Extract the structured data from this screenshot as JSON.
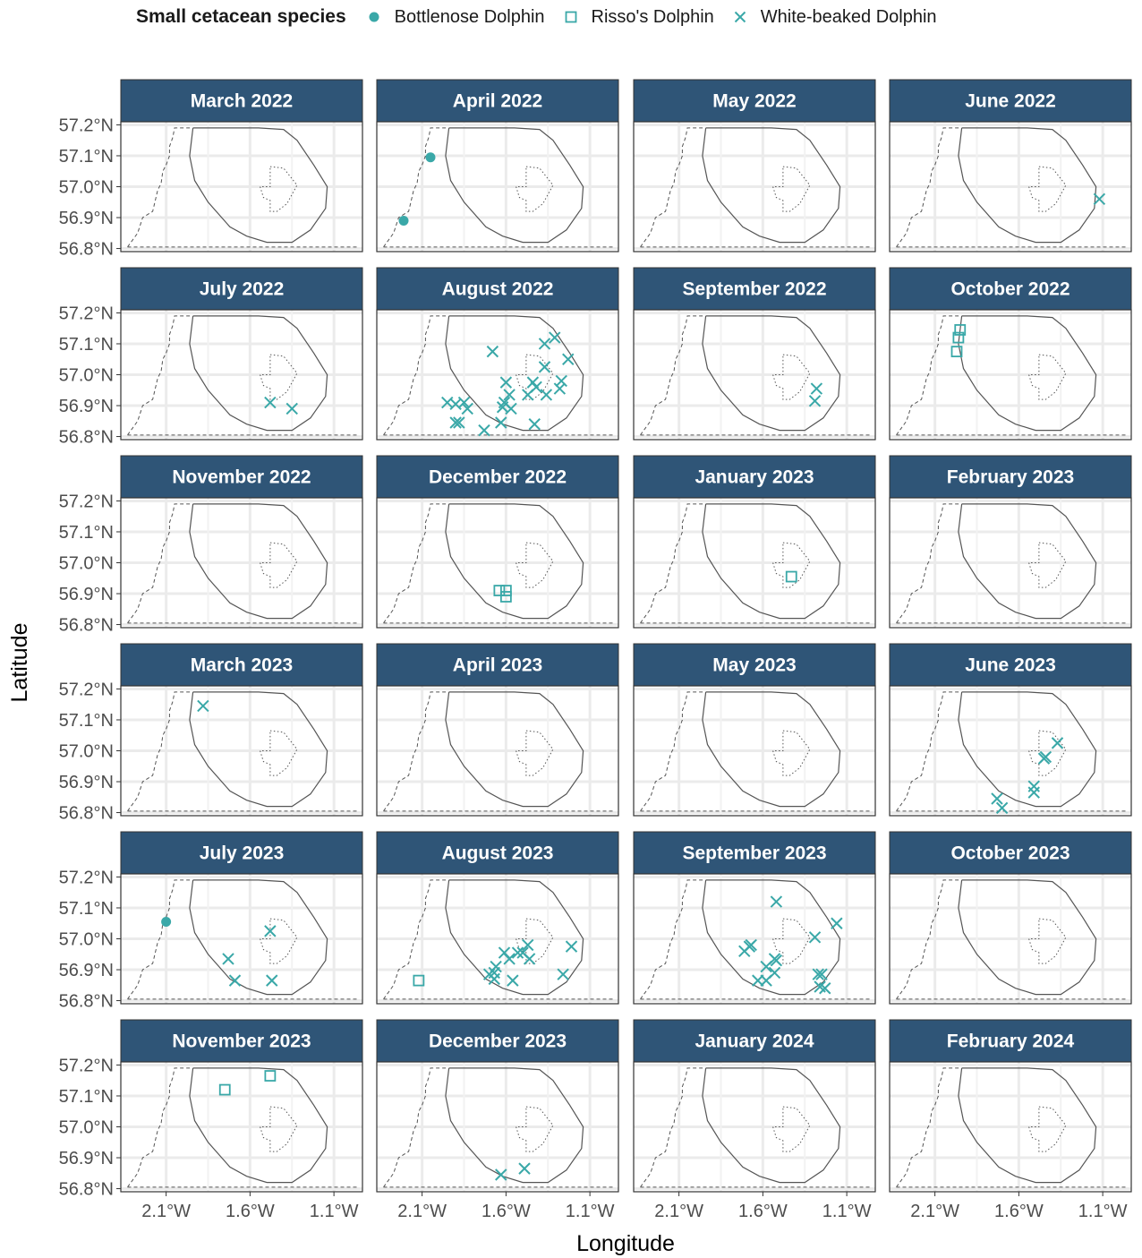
{
  "legend": {
    "title": "Small cetacean species",
    "items": [
      {
        "label": "Bottlenose Dolphin",
        "shape": "circle"
      },
      {
        "label": "Risso's Dolphin",
        "shape": "square"
      },
      {
        "label": "White-beaked Dolphin",
        "shape": "cross"
      }
    ]
  },
  "colors": {
    "accent": "#3aa8a8",
    "strip": "#2f5577",
    "strip_text": "#ffffff",
    "grid": "#ebebeb",
    "outline": "#555555",
    "panel_border": "#333333"
  },
  "chart_data": {
    "type": "scatter",
    "xlabel": "Longitude",
    "ylabel": "Latitude",
    "xlim": [
      -2.37,
      -0.93
    ],
    "ylim": [
      56.79,
      57.21
    ],
    "x_ticks": [
      -2.1,
      -1.6,
      -1.1
    ],
    "x_tick_labels": [
      "2.1°W",
      "1.6°W",
      "1.1°W"
    ],
    "y_ticks": [
      56.8,
      56.9,
      57.0,
      57.1,
      57.2
    ],
    "y_tick_labels": [
      "56.8°N",
      "56.9°N",
      "57.0°N",
      "57.1°N",
      "57.2°N"
    ],
    "grid": true,
    "legend_position": "top",
    "series_names": [
      "Bottlenose Dolphin",
      "Risso's Dolphin",
      "White-beaked Dolphin"
    ],
    "panels": [
      {
        "title": "March 2022",
        "points": []
      },
      {
        "title": "April 2022",
        "points": [
          {
            "s": 0,
            "x": -2.05,
            "y": 57.095
          },
          {
            "s": 0,
            "x": -2.21,
            "y": 56.89
          }
        ]
      },
      {
        "title": "May 2022",
        "points": []
      },
      {
        "title": "June 2022",
        "points": [
          {
            "s": 2,
            "x": -1.12,
            "y": 56.96
          }
        ]
      },
      {
        "title": "July 2022",
        "points": [
          {
            "s": 2,
            "x": -1.48,
            "y": 56.91
          },
          {
            "s": 2,
            "x": -1.35,
            "y": 56.89
          }
        ]
      },
      {
        "title": "August 2022",
        "points": [
          {
            "s": 2,
            "x": -1.68,
            "y": 57.075
          },
          {
            "s": 2,
            "x": -1.95,
            "y": 56.91
          },
          {
            "s": 2,
            "x": -1.9,
            "y": 56.905
          },
          {
            "s": 2,
            "x": -1.85,
            "y": 56.91
          },
          {
            "s": 2,
            "x": -1.83,
            "y": 56.89
          },
          {
            "s": 2,
            "x": -1.9,
            "y": 56.845
          },
          {
            "s": 2,
            "x": -1.88,
            "y": 56.845
          },
          {
            "s": 2,
            "x": -1.73,
            "y": 56.82
          },
          {
            "s": 2,
            "x": -1.63,
            "y": 56.845
          },
          {
            "s": 2,
            "x": -1.6,
            "y": 56.975
          },
          {
            "s": 2,
            "x": -1.58,
            "y": 56.935
          },
          {
            "s": 2,
            "x": -1.61,
            "y": 56.91
          },
          {
            "s": 2,
            "x": -1.62,
            "y": 56.895
          },
          {
            "s": 2,
            "x": -1.57,
            "y": 56.89
          },
          {
            "s": 2,
            "x": -1.47,
            "y": 56.935
          },
          {
            "s": 2,
            "x": -1.44,
            "y": 56.975
          },
          {
            "s": 2,
            "x": -1.42,
            "y": 56.96
          },
          {
            "s": 2,
            "x": -1.37,
            "y": 57.025
          },
          {
            "s": 2,
            "x": -1.37,
            "y": 57.1
          },
          {
            "s": 2,
            "x": -1.31,
            "y": 57.12
          },
          {
            "s": 2,
            "x": -1.23,
            "y": 57.05
          },
          {
            "s": 2,
            "x": -1.27,
            "y": 56.98
          },
          {
            "s": 2,
            "x": -1.28,
            "y": 56.955
          },
          {
            "s": 2,
            "x": -1.36,
            "y": 56.935
          },
          {
            "s": 2,
            "x": -1.43,
            "y": 56.84
          }
        ]
      },
      {
        "title": "September 2022",
        "points": [
          {
            "s": 2,
            "x": -1.28,
            "y": 56.955
          },
          {
            "s": 2,
            "x": -1.29,
            "y": 56.915
          }
        ]
      },
      {
        "title": "October 2022",
        "points": [
          {
            "s": 1,
            "x": -1.95,
            "y": 57.145
          },
          {
            "s": 1,
            "x": -1.96,
            "y": 57.12
          },
          {
            "s": 1,
            "x": -1.97,
            "y": 57.075
          }
        ]
      },
      {
        "title": "November 2022",
        "points": []
      },
      {
        "title": "December 2022",
        "points": [
          {
            "s": 1,
            "x": -1.64,
            "y": 56.91
          },
          {
            "s": 1,
            "x": -1.6,
            "y": 56.91
          },
          {
            "s": 1,
            "x": -1.6,
            "y": 56.89
          }
        ]
      },
      {
        "title": "January 2023",
        "points": [
          {
            "s": 1,
            "x": -1.43,
            "y": 56.955
          }
        ]
      },
      {
        "title": "February 2023",
        "points": []
      },
      {
        "title": "March 2023",
        "points": [
          {
            "s": 2,
            "x": -1.88,
            "y": 57.145
          }
        ]
      },
      {
        "title": "April 2023",
        "points": []
      },
      {
        "title": "May 2023",
        "points": []
      },
      {
        "title": "June 2023",
        "points": [
          {
            "s": 2,
            "x": -1.37,
            "y": 57.025
          },
          {
            "s": 2,
            "x": -1.44,
            "y": 56.98
          },
          {
            "s": 2,
            "x": -1.45,
            "y": 56.975
          },
          {
            "s": 2,
            "x": -1.51,
            "y": 56.885
          },
          {
            "s": 2,
            "x": -1.51,
            "y": 56.865
          },
          {
            "s": 2,
            "x": -1.73,
            "y": 56.845
          },
          {
            "s": 2,
            "x": -1.7,
            "y": 56.815
          }
        ]
      },
      {
        "title": "July 2023",
        "points": [
          {
            "s": 0,
            "x": -2.1,
            "y": 57.055
          },
          {
            "s": 2,
            "x": -1.48,
            "y": 57.025
          },
          {
            "s": 2,
            "x": -1.73,
            "y": 56.935
          },
          {
            "s": 2,
            "x": -1.69,
            "y": 56.865
          },
          {
            "s": 2,
            "x": -1.47,
            "y": 56.865
          }
        ]
      },
      {
        "title": "August 2023",
        "points": [
          {
            "s": 1,
            "x": -2.12,
            "y": 56.865
          },
          {
            "s": 2,
            "x": -1.61,
            "y": 56.955
          },
          {
            "s": 2,
            "x": -1.58,
            "y": 56.935
          },
          {
            "s": 2,
            "x": -1.53,
            "y": 56.955
          },
          {
            "s": 2,
            "x": -1.5,
            "y": 56.955
          },
          {
            "s": 2,
            "x": -1.47,
            "y": 56.98
          },
          {
            "s": 2,
            "x": -1.46,
            "y": 56.935
          },
          {
            "s": 2,
            "x": -1.66,
            "y": 56.91
          },
          {
            "s": 2,
            "x": -1.67,
            "y": 56.89
          },
          {
            "s": 2,
            "x": -1.7,
            "y": 56.885
          },
          {
            "s": 2,
            "x": -1.67,
            "y": 56.87
          },
          {
            "s": 2,
            "x": -1.56,
            "y": 56.865
          },
          {
            "s": 2,
            "x": -1.21,
            "y": 56.975
          },
          {
            "s": 2,
            "x": -1.26,
            "y": 56.885
          }
        ]
      },
      {
        "title": "September 2023",
        "points": [
          {
            "s": 2,
            "x": -1.52,
            "y": 57.12
          },
          {
            "s": 2,
            "x": -1.16,
            "y": 57.05
          },
          {
            "s": 2,
            "x": -1.29,
            "y": 57.005
          },
          {
            "s": 2,
            "x": -1.67,
            "y": 56.98
          },
          {
            "s": 2,
            "x": -1.68,
            "y": 56.975
          },
          {
            "s": 2,
            "x": -1.71,
            "y": 56.96
          },
          {
            "s": 2,
            "x": -1.53,
            "y": 56.935
          },
          {
            "s": 2,
            "x": -1.52,
            "y": 56.93
          },
          {
            "s": 2,
            "x": -1.58,
            "y": 56.91
          },
          {
            "s": 2,
            "x": -1.53,
            "y": 56.89
          },
          {
            "s": 2,
            "x": -1.27,
            "y": 56.885
          },
          {
            "s": 2,
            "x": -1.25,
            "y": 56.885
          },
          {
            "s": 2,
            "x": -1.63,
            "y": 56.865
          },
          {
            "s": 2,
            "x": -1.58,
            "y": 56.865
          },
          {
            "s": 2,
            "x": -1.26,
            "y": 56.845
          },
          {
            "s": 2,
            "x": -1.23,
            "y": 56.84
          }
        ]
      },
      {
        "title": "October 2023",
        "points": []
      },
      {
        "title": "November 2023",
        "points": [
          {
            "s": 1,
            "x": -1.75,
            "y": 57.12
          },
          {
            "s": 1,
            "x": -1.48,
            "y": 57.165
          }
        ]
      },
      {
        "title": "December 2023",
        "points": [
          {
            "s": 2,
            "x": -1.49,
            "y": 56.865
          },
          {
            "s": 2,
            "x": -1.63,
            "y": 56.845
          }
        ]
      },
      {
        "title": "January 2024",
        "points": []
      },
      {
        "title": "February 2024",
        "points": []
      }
    ]
  }
}
